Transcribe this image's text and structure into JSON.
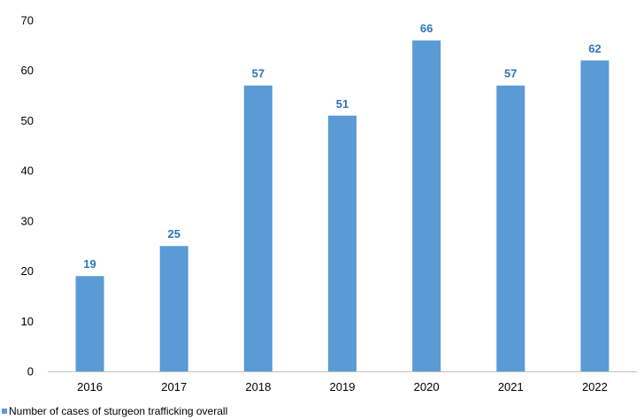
{
  "chart_data": {
    "type": "bar",
    "categories": [
      "2016",
      "2017",
      "2018",
      "2019",
      "2020",
      "2021",
      "2022"
    ],
    "series": [
      {
        "name": "Number of cases of sturgeon trafficking overall",
        "values": [
          19,
          25,
          57,
          51,
          66,
          57,
          62
        ]
      }
    ],
    "ylim": [
      0,
      70
    ],
    "yticks": [
      0,
      10,
      20,
      30,
      40,
      50,
      60,
      70
    ],
    "grid": false,
    "legend_position": "bottom-left",
    "data_labels": true,
    "colors": {
      "bar": "#5b9bd5",
      "data_label": "#2e75b6",
      "axis": "#bfbfbf"
    }
  }
}
